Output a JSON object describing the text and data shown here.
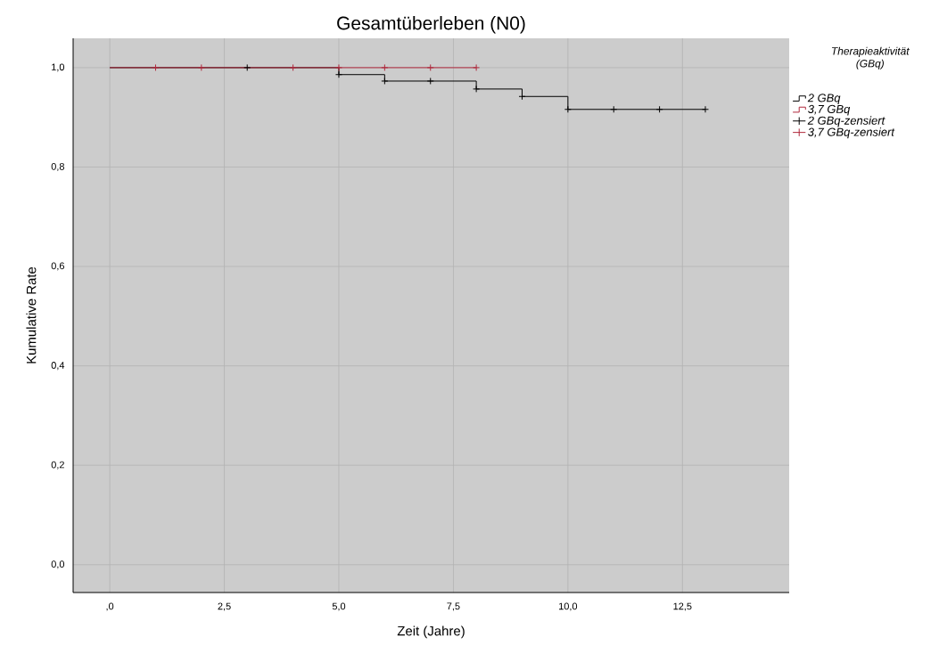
{
  "chart_data": {
    "type": "step",
    "title": "Gesamtüberleben (N0)",
    "xlabel": "Zeit (Jahre)",
    "ylabel": "Kumulative Rate",
    "legend_title": "Therapieaktivität (GBq)",
    "xlim": [
      -0.8,
      14.83
    ],
    "ylim": [
      -0.056,
      1.059
    ],
    "xticks": [
      {
        "value": 0,
        "label": ",0"
      },
      {
        "value": 2.5,
        "label": "2,5"
      },
      {
        "value": 5,
        "label": "5,0"
      },
      {
        "value": 7.5,
        "label": "7,5"
      },
      {
        "value": 10,
        "label": "10,0"
      },
      {
        "value": 12.5,
        "label": "12,5"
      }
    ],
    "yticks": [
      {
        "value": 0,
        "label": "0,0"
      },
      {
        "value": 0.2,
        "label": "0,2"
      },
      {
        "value": 0.4,
        "label": "0,4"
      },
      {
        "value": 0.6,
        "label": "0,6"
      },
      {
        "value": 0.8,
        "label": "0,8"
      },
      {
        "value": 1,
        "label": "1,0"
      }
    ],
    "grid": true,
    "legend": "top right",
    "series": [
      {
        "name": "2 GBq",
        "color": "#000000",
        "x": [
          0,
          5,
          6,
          8,
          9,
          10,
          13
        ],
        "values": [
          1,
          0.986,
          0.973,
          0.957,
          0.942,
          0.916,
          0.916
        ]
      },
      {
        "name": "3,7 GBq",
        "color": "#b0283c",
        "x": [
          0,
          8
        ],
        "values": [
          1,
          1
        ]
      },
      {
        "name": "2 GBq-zensiert",
        "type": "scatter",
        "marker": "cross",
        "color": "#000000",
        "x": [
          3,
          5,
          6,
          7,
          8,
          9,
          10,
          11,
          12,
          13
        ],
        "values": [
          1,
          0.986,
          0.973,
          0.973,
          0.957,
          0.942,
          0.916,
          0.916,
          0.916,
          0.916
        ]
      },
      {
        "name": "3,7 GBq-zensiert",
        "type": "scatter",
        "marker": "cross",
        "color": "#b0283c",
        "x": [
          1,
          2,
          4,
          5,
          6,
          7,
          8
        ],
        "values": [
          1,
          1,
          1,
          1,
          1,
          1,
          1
        ]
      }
    ]
  }
}
